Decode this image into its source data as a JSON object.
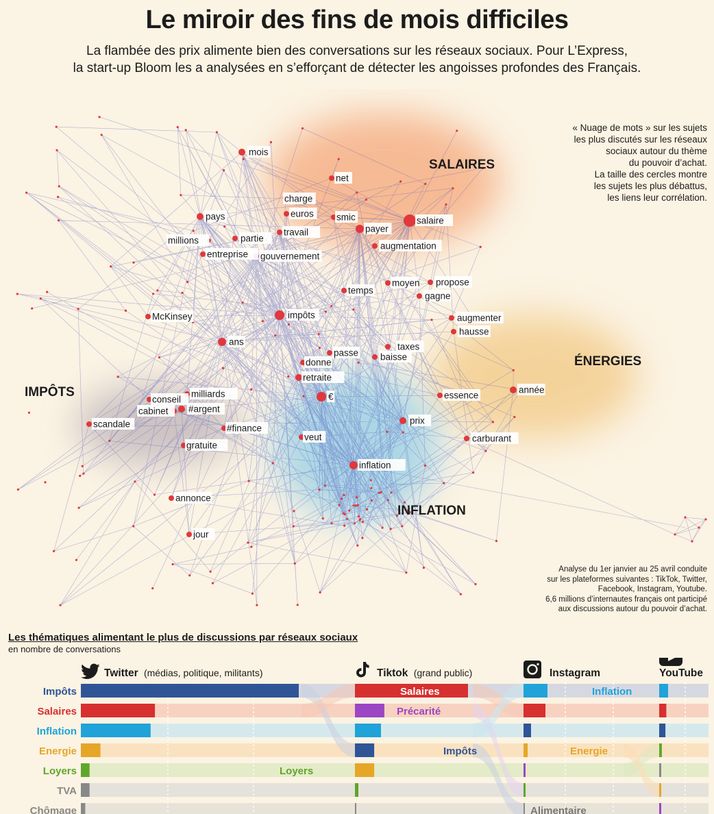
{
  "header": {
    "title": "Le miroir des fins de mois difficiles",
    "subtitle_line1": "La flambée des prix alimente bien des conversations sur les réseaux sociaux. Pour L’Express,",
    "subtitle_line2": "la start-up Bloom les a analysées en s’efforçant de détecter les angoisses profondes des Français."
  },
  "side_note": {
    "lines": [
      "« Nuage de mots » sur les sujets",
      "les plus discutés sur les réseaux",
      "sociaux autour du thème",
      "du pouvoir d’achat.",
      "La taille des cercles montre",
      "les sujets les plus débattus,",
      "les liens leur corrélation."
    ]
  },
  "themes": {
    "salaires": "SALAIRES",
    "energies": "ÉNERGIES",
    "impots": "IMPÔTS",
    "inflation": "INFLATION"
  },
  "words": [
    "mois",
    "net",
    "charge",
    "euros",
    "smic",
    "payer",
    "salaire",
    "pays",
    "millions",
    "partie",
    "travail",
    "augmentation",
    "entreprise",
    "gouvernement",
    "moyen",
    "propose",
    "temps",
    "gagne",
    "McKinsey",
    "impôts",
    "augmenter",
    "hausse",
    "ans",
    "taxes",
    "passe",
    "baisse",
    "donne",
    "retraite",
    "€",
    "année",
    "conseil",
    "milliards",
    "cabinet",
    "#argent",
    "essence",
    "scandale",
    "#finance",
    "prix",
    "gratuite",
    "veut",
    "carburant",
    "inflation",
    "annonce",
    "jour"
  ],
  "colors": {
    "background": "#fbf3e3",
    "edge": "#4a55c0",
    "node": "#e0383b",
    "salaires_zone": "#f5a77a",
    "energie_zone": "#f2c67e",
    "inflation_zone": "#8ccbe6",
    "impots_zone": "#b9aeb6"
  },
  "analysis_note": {
    "lines": [
      "Analyse du 1er janvier au 25 avril conduite",
      "sur les plateformes suivantes : TikTok, Twitter,",
      "Facebook, Instagram, Youtube.",
      "6,6 millions d’internautes français ont participé",
      "aux discussions autour du pouvoir d’achat."
    ]
  },
  "ranking": {
    "title": "Les thématiques alimentant le plus de discussions par réseaux sociaux",
    "subtitle": "en nombre de conversations",
    "platforms": {
      "twitter": {
        "name": "Twitter",
        "audience": "(médias, politique, militants)"
      },
      "tiktok": {
        "name": "Tiktok",
        "audience": "(grand public)"
      },
      "instagram": {
        "name": "Instagram"
      },
      "youtube": {
        "name": "YouTube"
      }
    },
    "twitter_rows": [
      "Impôts",
      "Salaires",
      "Inflation",
      "Energie",
      "Loyers",
      "TVA",
      "Chômage"
    ],
    "inline_labels": {
      "loyers": "Loyers",
      "salaires": "Salaires",
      "precarite": "Précarité",
      "impots": "Impôts",
      "inflation": "Inflation",
      "energie": "Energie",
      "alimentaire": "Alimentaire"
    },
    "twitter_values": [
      1.0,
      0.34,
      0.32,
      0.09,
      0.04,
      0.04,
      0.02
    ],
    "tiktok_values": [
      1.0,
      0.26,
      0.23,
      0.17,
      0.17,
      0.03,
      0.01
    ],
    "instagram_values": [
      0.35,
      0.32,
      0.11,
      0.06,
      0.03,
      0.03,
      0.01
    ],
    "youtube_values": [
      1.0,
      0.8,
      0.7,
      0.3,
      0.2,
      0.1,
      0.05
    ]
  }
}
